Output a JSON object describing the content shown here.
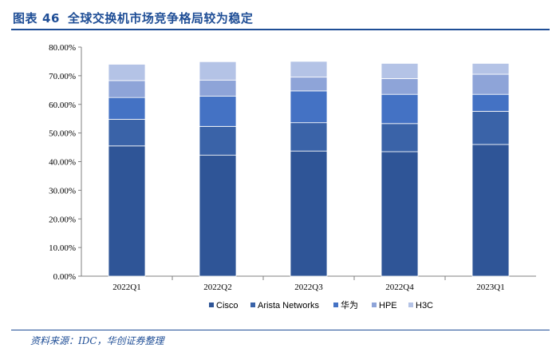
{
  "header": {
    "label": "图表",
    "number": "46",
    "title": "全球交换机市场竞争格局较为稳定"
  },
  "source": "资料来源：IDC，华创证券整理",
  "colors": {
    "brand": "#1f4e96",
    "series": [
      "#2f5597",
      "#3a63a8",
      "#4472c4",
      "#8ea4d8",
      "#b4c3e6"
    ]
  },
  "chart_data": {
    "type": "bar",
    "stacked": true,
    "categories": [
      "2022Q1",
      "2022Q2",
      "2022Q3",
      "2022Q4",
      "2023Q1"
    ],
    "series": [
      {
        "name": "Cisco",
        "values": [
          45.5,
          42.3,
          43.7,
          43.5,
          46.0
        ]
      },
      {
        "name": "Arista Networks",
        "values": [
          9.3,
          10.0,
          9.9,
          9.8,
          11.6
        ]
      },
      {
        "name": "华为",
        "values": [
          7.6,
          10.6,
          11.1,
          10.2,
          5.9
        ]
      },
      {
        "name": "HPE",
        "values": [
          5.9,
          5.6,
          4.8,
          5.5,
          7.0
        ]
      },
      {
        "name": "H3C",
        "values": [
          5.7,
          6.4,
          5.5,
          5.3,
          3.8
        ]
      }
    ],
    "y_ticks": [
      "0.00%",
      "10.00%",
      "20.00%",
      "30.00%",
      "40.00%",
      "50.00%",
      "60.00%",
      "70.00%",
      "80.00%"
    ],
    "ylim": [
      0,
      80
    ],
    "legend_position": "bottom",
    "grid": false
  }
}
